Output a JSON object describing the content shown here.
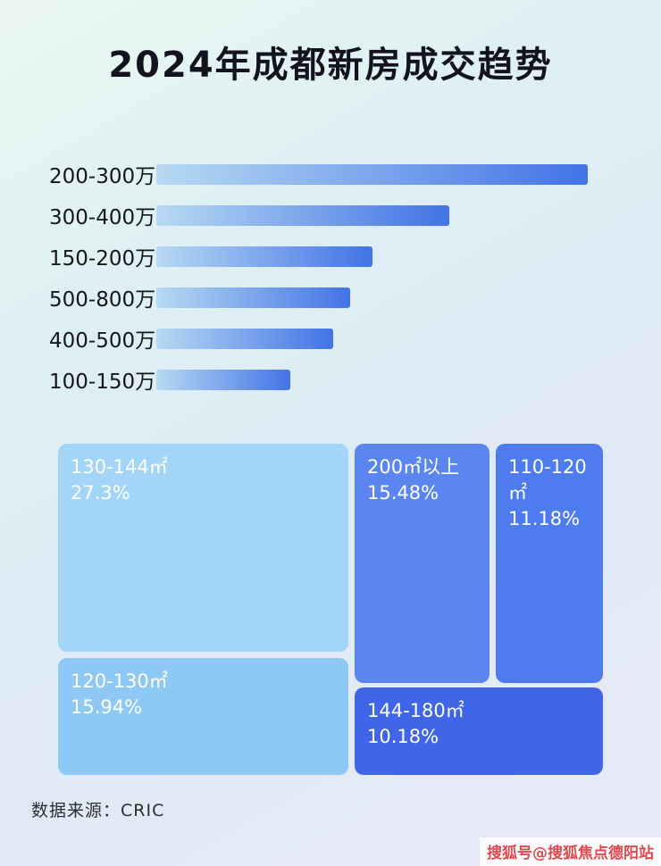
{
  "title": "2024年成都新房成交趋势",
  "source_label": "数据来源：CRIC",
  "watermark": "搜狐号@搜狐焦点德阳站",
  "colors": {
    "background_gradient": [
      "#eaf7f0",
      "#def0f3",
      "#dfeaf6",
      "#e9e9f6"
    ],
    "title_text": "#12131f",
    "watermark_text": "#e2484e"
  },
  "chart_data": [
    {
      "type": "bar",
      "orientation": "horizontal",
      "title": "2024年成都新房成交趋势",
      "categories": [
        "200-300万",
        "300-400万",
        "150-200万",
        "500-800万",
        "400-500万",
        "100-150万"
      ],
      "values": [
        100,
        68,
        50,
        45,
        41,
        31
      ],
      "values_note": "relative bar lengths as % of longest bar; absolute values are not labeled in the image",
      "bar_gradient": [
        "#b7d9f2",
        "#4273e6"
      ],
      "xlabel": "",
      "ylabel": "",
      "grid": false,
      "legend": false
    },
    {
      "type": "treemap",
      "title": "",
      "items": [
        {
          "label": "130-144㎡",
          "value": 27.3,
          "display": "27.3%",
          "color": "#a2d5f8"
        },
        {
          "label": "120-130㎡",
          "value": 15.94,
          "display": "15.94%",
          "color": "#8ec8f4"
        },
        {
          "label": "200㎡以上",
          "value": 15.48,
          "display": "15.48%",
          "color": "#5b86ef"
        },
        {
          "label": "110-120㎡",
          "value": 11.18,
          "display": "11.18%",
          "color": "#4e7bee"
        },
        {
          "label": "144-180㎡",
          "value": 10.18,
          "display": "10.18%",
          "color": "#3f66e9"
        }
      ]
    }
  ]
}
